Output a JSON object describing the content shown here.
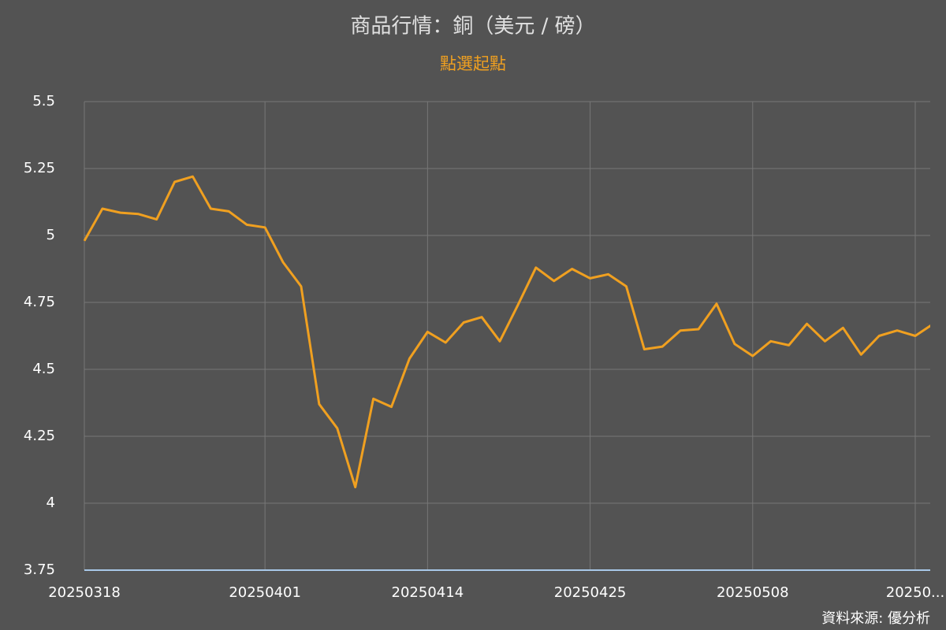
{
  "chart_data": {
    "type": "line",
    "title": "商品行情：銅（美元 / 磅）",
    "subtitle": "點選起點",
    "source": "資料來源: 優分析",
    "categories": [
      "20250318",
      null,
      null,
      null,
      null,
      null,
      null,
      null,
      null,
      null,
      "20250401",
      null,
      null,
      null,
      null,
      null,
      null,
      null,
      null,
      "20250414",
      null,
      null,
      null,
      null,
      null,
      null,
      null,
      null,
      "20250425",
      null,
      null,
      null,
      null,
      null,
      null,
      null,
      null,
      "20250508",
      null,
      null,
      null,
      null,
      null,
      null,
      null,
      null,
      "20250...",
      null
    ],
    "series": [
      {
        "name": "銅",
        "color": "#f0a020",
        "values": [
          4.98,
          5.1,
          5.085,
          5.08,
          5.06,
          5.2,
          5.22,
          5.1,
          5.09,
          5.04,
          5.03,
          4.9,
          4.81,
          4.37,
          4.28,
          4.06,
          4.39,
          4.36,
          4.54,
          4.64,
          4.6,
          4.675,
          4.695,
          4.605,
          4.74,
          4.88,
          4.83,
          4.875,
          4.84,
          4.855,
          4.81,
          4.575,
          4.585,
          4.645,
          4.65,
          4.745,
          4.595,
          4.55,
          4.605,
          4.59,
          4.67,
          4.605,
          4.655,
          4.555,
          4.625,
          4.645,
          4.625,
          4.67
        ]
      }
    ],
    "ylim": [
      3.75,
      5.5
    ],
    "yticks": [
      3.75,
      4,
      4.25,
      4.5,
      4.75,
      5,
      5.25,
      5.5
    ],
    "grid": true
  }
}
